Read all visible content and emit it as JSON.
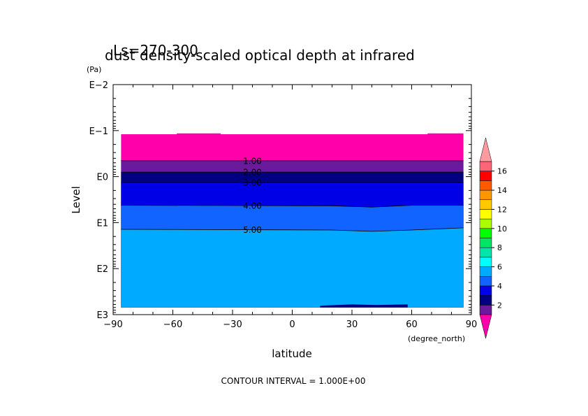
{
  "chart_data": {
    "type": "heatmap",
    "title": "dust density-scaled optical depth at infrared",
    "subtitle": "Ls=270-300",
    "xlabel": "latitude",
    "xunit": "(degree_north)",
    "ylabel": "Level",
    "yunit": "(Pa)",
    "footer": "CONTOUR INTERVAL = 1.000E+00",
    "xlim": [
      -90,
      90
    ],
    "xticks": [
      -90,
      -60,
      -30,
      0,
      30,
      60,
      90
    ],
    "xtick_labels": [
      "−90",
      "−60",
      "−30",
      "0",
      "30",
      "60",
      "90"
    ],
    "ylim": [
      0.01,
      1000
    ],
    "yscale": "log",
    "y_inverted": true,
    "yticks": [
      0.01,
      0.1,
      1,
      10,
      100,
      1000
    ],
    "ytick_labels": [
      "E−2",
      "E−1",
      "E0",
      "E1",
      "E2",
      "E3"
    ],
    "data_extent": {
      "lat": [
        -86,
        86
      ],
      "level_top_by_lat": [
        [
          -86,
          0.12
        ],
        [
          -58,
          0.12
        ],
        [
          -58,
          0.115
        ],
        [
          -36,
          0.115
        ],
        [
          -36,
          0.12
        ],
        [
          68,
          0.12
        ],
        [
          68,
          0.115
        ],
        [
          86,
          0.115
        ]
      ],
      "level_bottom": 700
    },
    "background_band": {
      "range": [
        0,
        1
      ],
      "color": "#ff00aa"
    },
    "contour_levels": [
      {
        "value": 1,
        "label": "1.00",
        "level_by_lat": [
          [
            -86,
            0.45
          ],
          [
            86,
            0.45
          ]
        ]
      },
      {
        "value": 2,
        "label": "2.00",
        "level_by_lat": [
          [
            -86,
            0.8
          ],
          [
            86,
            0.8
          ]
        ]
      },
      {
        "value": 3,
        "label": "3.00",
        "level_by_lat": [
          [
            -86,
            1.35
          ],
          [
            86,
            1.35
          ]
        ]
      },
      {
        "value": 4,
        "label": "4.00",
        "level_by_lat": [
          [
            -86,
            4.2
          ],
          [
            20,
            4.3
          ],
          [
            40,
            4.6
          ],
          [
            60,
            4.2
          ],
          [
            86,
            4.2
          ]
        ]
      },
      {
        "value": 5,
        "label": "5.00",
        "level_by_lat": [
          [
            -86,
            14
          ],
          [
            20,
            14.5
          ],
          [
            40,
            15.5
          ],
          [
            60,
            14.5
          ],
          [
            86,
            13
          ]
        ]
      }
    ],
    "bands": [
      {
        "range": [
          1,
          2
        ],
        "color": "#6a1a9a"
      },
      {
        "range": [
          2,
          3
        ],
        "color": "#000080"
      },
      {
        "range": [
          3,
          4
        ],
        "color": "#0000e6"
      },
      {
        "range": [
          4,
          5
        ],
        "color": "#1164ff"
      },
      {
        "range": [
          5,
          6
        ],
        "color": "#00aaff"
      }
    ],
    "bottom_feature": {
      "range": [
        2,
        3
      ],
      "color": "#000080",
      "shape_lat_level": [
        [
          14,
          640
        ],
        [
          30,
          600
        ],
        [
          42,
          620
        ],
        [
          58,
          600
        ],
        [
          58,
          700
        ],
        [
          14,
          700
        ]
      ]
    },
    "colorbar": {
      "levels": [
        1,
        2,
        3,
        4,
        5,
        6,
        7,
        8,
        9,
        10,
        11,
        12,
        13,
        14,
        15,
        16,
        17
      ],
      "colors": [
        "#6a1a9a",
        "#000080",
        "#0000e6",
        "#1164ff",
        "#00aaff",
        "#00ffff",
        "#00e6aa",
        "#00e664",
        "#00ff00",
        "#aaff00",
        "#ffff00",
        "#ffc800",
        "#ff9600",
        "#ff5a00",
        "#ff0000",
        "#ff6478"
      ],
      "under_color": "#ff00aa",
      "over_color": "#ff9aa0",
      "tick_values": [
        2,
        4,
        6,
        8,
        10,
        12,
        14,
        16
      ],
      "tick_labels": [
        "2",
        "4",
        "6",
        "8",
        "10",
        "12",
        "14",
        "16"
      ]
    }
  }
}
